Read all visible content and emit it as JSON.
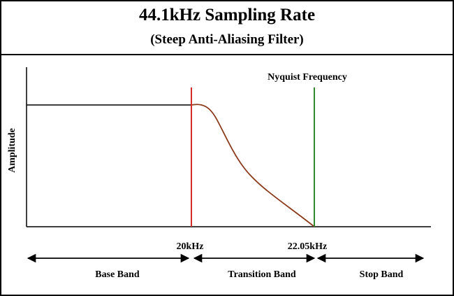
{
  "header": {
    "title": "44.1kHz Sampling Rate",
    "subtitle": "(Steep Anti-Aliasing Filter)"
  },
  "plot": {
    "y_axis_label": "Amplitude",
    "nyquist_label": "Nyquist Frequency",
    "cutoff_tick": "20kHz",
    "nyquist_tick": "22.05kHz"
  },
  "bands": {
    "base": "Base Band",
    "transition": "Transition Band",
    "stop": "Stop Band"
  },
  "colors": {
    "cutoff_line": "#d62b2b",
    "nyquist_line": "#2f8a2f",
    "filter_curve": "#8b3a1a",
    "axis": "#000000"
  }
}
